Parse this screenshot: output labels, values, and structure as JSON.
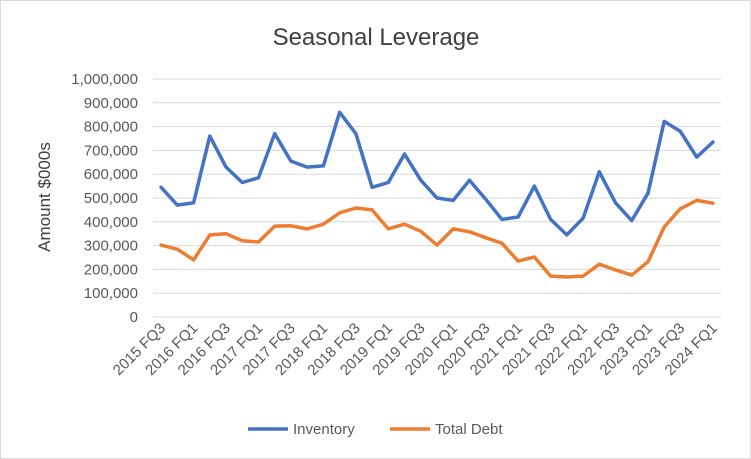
{
  "chart_data": {
    "type": "line",
    "title": "Seasonal Leverage",
    "xlabel": "",
    "ylabel": "Amount $000s",
    "ylim": [
      0,
      1000000
    ],
    "yticks": [
      0,
      100000,
      200000,
      300000,
      400000,
      500000,
      600000,
      700000,
      800000,
      900000,
      1000000
    ],
    "ytick_labels": [
      "0",
      "100,000",
      "200,000",
      "300,000",
      "400,000",
      "500,000",
      "600,000",
      "700,000",
      "800,000",
      "900,000",
      "1,000,000"
    ],
    "grid": true,
    "legend_position": "bottom",
    "x": [
      "2015 FQ3",
      "2015 FQ4",
      "2016 FQ1",
      "2016 FQ2",
      "2016 FQ3",
      "2016 FQ4",
      "2017 FQ1",
      "2017 FQ2",
      "2017 FQ3",
      "2017 FQ4",
      "2018 FQ1",
      "2018 FQ2",
      "2018 FQ3",
      "2018 FQ4",
      "2019 FQ1",
      "2019 FQ2",
      "2019 FQ3",
      "2019 FQ4",
      "2020 FQ1",
      "2020 FQ2",
      "2020 FQ3",
      "2020 FQ4",
      "2021 FQ1",
      "2021 FQ2",
      "2021 FQ3",
      "2021 FQ4",
      "2022 FQ1",
      "2022 FQ2",
      "2022 FQ3",
      "2022 FQ4",
      "2023 FQ1",
      "2023 FQ2",
      "2023 FQ3",
      "2023 FQ4",
      "2024 FQ1"
    ],
    "x_tick_labels": [
      "2015 FQ3",
      "2016 FQ1",
      "2016 FQ3",
      "2017 FQ1",
      "2017 FQ3",
      "2018 FQ1",
      "2018 FQ3",
      "2019 FQ1",
      "2019 FQ3",
      "2020 FQ1",
      "2020 FQ3",
      "2021 FQ1",
      "2021 FQ3",
      "2022 FQ1",
      "2022 FQ3",
      "2023 FQ1",
      "2023 FQ3",
      "2024 FQ1"
    ],
    "series": [
      {
        "name": "Inventory",
        "color": "#4472c4",
        "values": [
          545000,
          470000,
          480000,
          760000,
          630000,
          565000,
          585000,
          770000,
          655000,
          630000,
          635000,
          860000,
          770000,
          545000,
          565000,
          685000,
          575000,
          500000,
          490000,
          575000,
          495000,
          410000,
          420000,
          550000,
          410000,
          345000,
          415000,
          610000,
          480000,
          405000,
          520000,
          822000,
          780000,
          672000,
          735000
        ]
      },
      {
        "name": "Total Debt",
        "color": "#ed7d31",
        "values": [
          302000,
          285000,
          240000,
          345000,
          350000,
          320000,
          315000,
          382000,
          383000,
          370000,
          390000,
          438000,
          458000,
          450000,
          370000,
          390000,
          360000,
          302000,
          370000,
          358000,
          333000,
          310000,
          235000,
          252000,
          172000,
          168000,
          172000,
          222000,
          198000,
          176000,
          232000,
          378000,
          455000,
          490000,
          478000
        ]
      }
    ]
  }
}
